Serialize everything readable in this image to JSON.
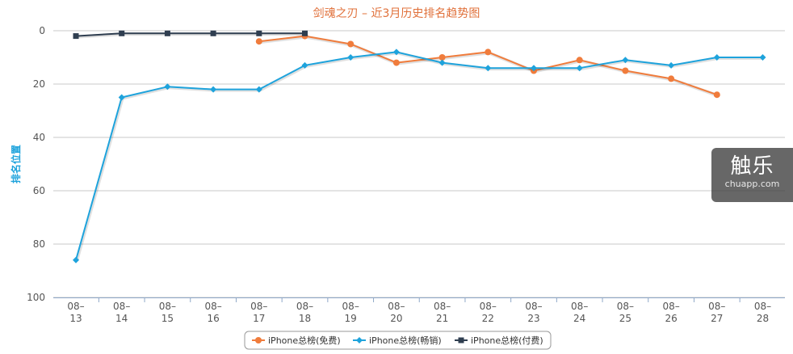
{
  "chart_data": {
    "type": "line",
    "title": "剑魂之刃 – 近3月历史排名趋势图",
    "ylabel": "排名位置",
    "xlabel": "",
    "categories": [
      "08-13",
      "08-14",
      "08-15",
      "08-16",
      "08-17",
      "08-18",
      "08-19",
      "08-20",
      "08-21",
      "08-22",
      "08-23",
      "08-24",
      "08-25",
      "08-26",
      "08-27",
      "08-28"
    ],
    "y_ticks": [
      0,
      20,
      40,
      60,
      80,
      100
    ],
    "ylim": [
      0,
      100
    ],
    "y_reversed": true,
    "grid": true,
    "legend_position": "bottom-center",
    "series": [
      {
        "name": "iPhone总榜(免费)",
        "color": "#f07c3c",
        "marker": "circle",
        "values": [
          null,
          null,
          null,
          null,
          4,
          2,
          5,
          12,
          10,
          8,
          15,
          11,
          15,
          18,
          24,
          null
        ]
      },
      {
        "name": "iPhone总榜(畅销)",
        "color": "#1ea3dc",
        "marker": "diamond",
        "values": [
          86,
          25,
          21,
          22,
          22,
          13,
          10,
          8,
          12,
          14,
          14,
          14,
          11,
          13,
          10,
          10
        ]
      },
      {
        "name": "iPhone总榜(付费)",
        "color": "#2f3e50",
        "marker": "square",
        "values": [
          2,
          1,
          1,
          1,
          1,
          1,
          null,
          null,
          null,
          null,
          null,
          null,
          null,
          null,
          null,
          null
        ]
      }
    ]
  },
  "watermark": {
    "main": "触乐",
    "sub": "chuapp.com"
  }
}
